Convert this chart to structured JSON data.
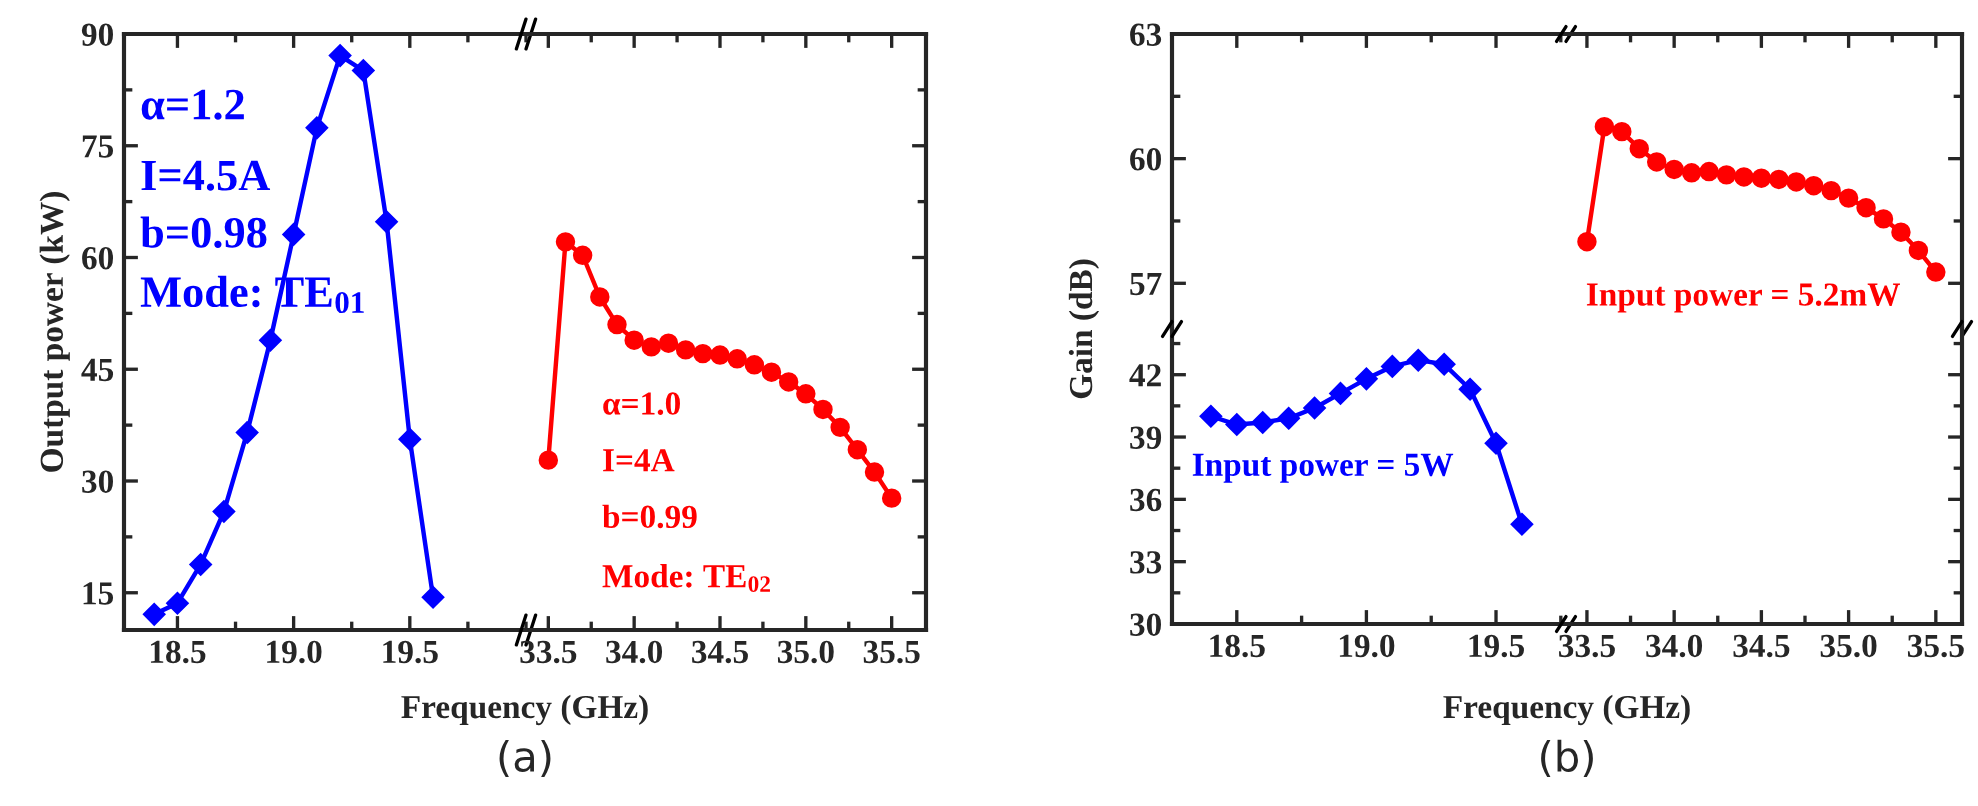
{
  "chart_data": [
    {
      "type": "line",
      "xlabel": "Frequency (GHz)",
      "ylabel": "Output power (kW)",
      "marker": "diamond",
      "line_style": "solid",
      "grid": false,
      "legend": false,
      "x": [
        18.4,
        18.5,
        18.6,
        18.7,
        18.8,
        18.9,
        19.0,
        19.1,
        19.2,
        19.3,
        19.4,
        19.5,
        19.6
      ],
      "series": [
        {
          "color": "#0000ff",
          "values": [
            12.1,
            13.6,
            18.8,
            25.9,
            36.5,
            48.9,
            63.1,
            77.4,
            87.1,
            85.1,
            64.8,
            35.6,
            14.4
          ]
        }
      ],
      "xlim": [
        18.27,
        20.0
      ],
      "xticks": [
        18.5,
        {
          "value": 19,
          "label": "19.0"
        },
        19.5
      ],
      "ylim": [
        10,
        90
      ],
      "yticks": [
        15,
        30,
        45,
        60,
        75,
        90
      ],
      "annotations": [
        "α=1.2",
        "I=4.5A",
        "b=0.98",
        "Mode: TE$_{01}$",
        "(a)"
      ]
    },
    {
      "type": "line",
      "marker": "circle",
      "line_style": "solid",
      "grid": false,
      "legend": false,
      "tick_labels": "x",
      "x": [
        33.5,
        33.6,
        33.7,
        33.8,
        33.9,
        34.0,
        34.1,
        34.2,
        34.3,
        34.4,
        34.5,
        34.6,
        34.7,
        34.8,
        34.9,
        35.0,
        35.1,
        35.2,
        35.3,
        35.4,
        35.5
      ],
      "series": [
        {
          "color": "#ff0000",
          "values": [
            32.8,
            62.1,
            60.3,
            54.7,
            51.0,
            48.9,
            48.0,
            48.5,
            47.6,
            47.1,
            46.9,
            46.4,
            45.6,
            44.6,
            43.3,
            41.7,
            39.6,
            37.2,
            34.2,
            31.2,
            27.7
          ]
        }
      ],
      "xlim": [
        33.37,
        35.7
      ],
      "xticks": [
        33.5,
        {
          "value": 34,
          "label": "34.0"
        },
        34.5,
        {
          "value": 35,
          "label": "35.0"
        },
        35.5
      ],
      "ylim": [
        10,
        90
      ],
      "yticks": [
        15,
        30,
        45,
        60,
        75,
        90
      ],
      "annotations": [
        "α=1.0",
        "I=4A",
        "b=0.99",
        "Mode: TE$_{02}$"
      ]
    },
    {
      "type": "line",
      "ylabel": "Gain (dB)",
      "grid": false,
      "legend": false,
      "tick_labels": "y",
      "xlim": [
        18.25,
        19.77
      ],
      "ylim": [
        55.9,
        63
      ],
      "yticks": [
        57,
        60,
        63
      ]
    },
    {
      "type": "line",
      "marker": "circle",
      "line_style": "solid",
      "grid": false,
      "legend": false,
      "tick_labels": false,
      "x": [
        33.5,
        33.6,
        33.7,
        33.8,
        33.9,
        34.0,
        34.1,
        34.2,
        34.3,
        34.4,
        34.5,
        34.6,
        34.7,
        34.8,
        34.9,
        35.0,
        35.1,
        35.2,
        35.3,
        35.4,
        35.5
      ],
      "series": [
        {
          "color": "#ff0000",
          "values": [
            58.0,
            60.77,
            60.65,
            60.24,
            59.92,
            59.74,
            59.66,
            59.69,
            59.61,
            59.56,
            59.53,
            59.5,
            59.44,
            59.35,
            59.23,
            59.05,
            58.82,
            58.55,
            58.23,
            57.79,
            57.27
          ]
        }
      ],
      "xlim": [
        33.38,
        35.65
      ],
      "ylim": [
        55.9,
        63
      ],
      "yticks": [
        57,
        60,
        63
      ],
      "annotations": [
        "Input power = 5.2mW"
      ]
    },
    {
      "type": "line",
      "xlabel": "Frequency (GHz)",
      "marker": "diamond",
      "line_style": "solid",
      "grid": false,
      "legend": false,
      "x": [
        18.4,
        18.5,
        18.6,
        18.7,
        18.8,
        18.9,
        19.0,
        19.1,
        19.2,
        19.3,
        19.4,
        19.5,
        19.6
      ],
      "series": [
        {
          "color": "#0000ff",
          "values": [
            40.0,
            39.6,
            39.7,
            39.9,
            40.4,
            41.1,
            41.8,
            42.4,
            42.7,
            42.5,
            41.3,
            38.7,
            34.8
          ]
        }
      ],
      "xlim": [
        18.25,
        19.77
      ],
      "xticks": [
        18.5,
        {
          "value": 19,
          "label": "19.0"
        },
        19.5
      ],
      "ylim": [
        30,
        44.2
      ],
      "yticks": [
        30,
        33,
        36,
        39,
        42
      ],
      "annotations": [
        "Input power = 5W",
        "(b)"
      ]
    },
    {
      "type": "line",
      "grid": false,
      "legend": false,
      "tick_labels": "x",
      "xlim": [
        33.38,
        35.65
      ],
      "xticks": [
        33.5,
        {
          "value": 34,
          "label": "34.0"
        },
        34.5,
        {
          "value": 35,
          "label": "35.0"
        },
        35.5
      ],
      "ylim": [
        30,
        44.2
      ],
      "yticks": [
        30,
        33,
        36,
        39,
        42
      ]
    }
  ]
}
